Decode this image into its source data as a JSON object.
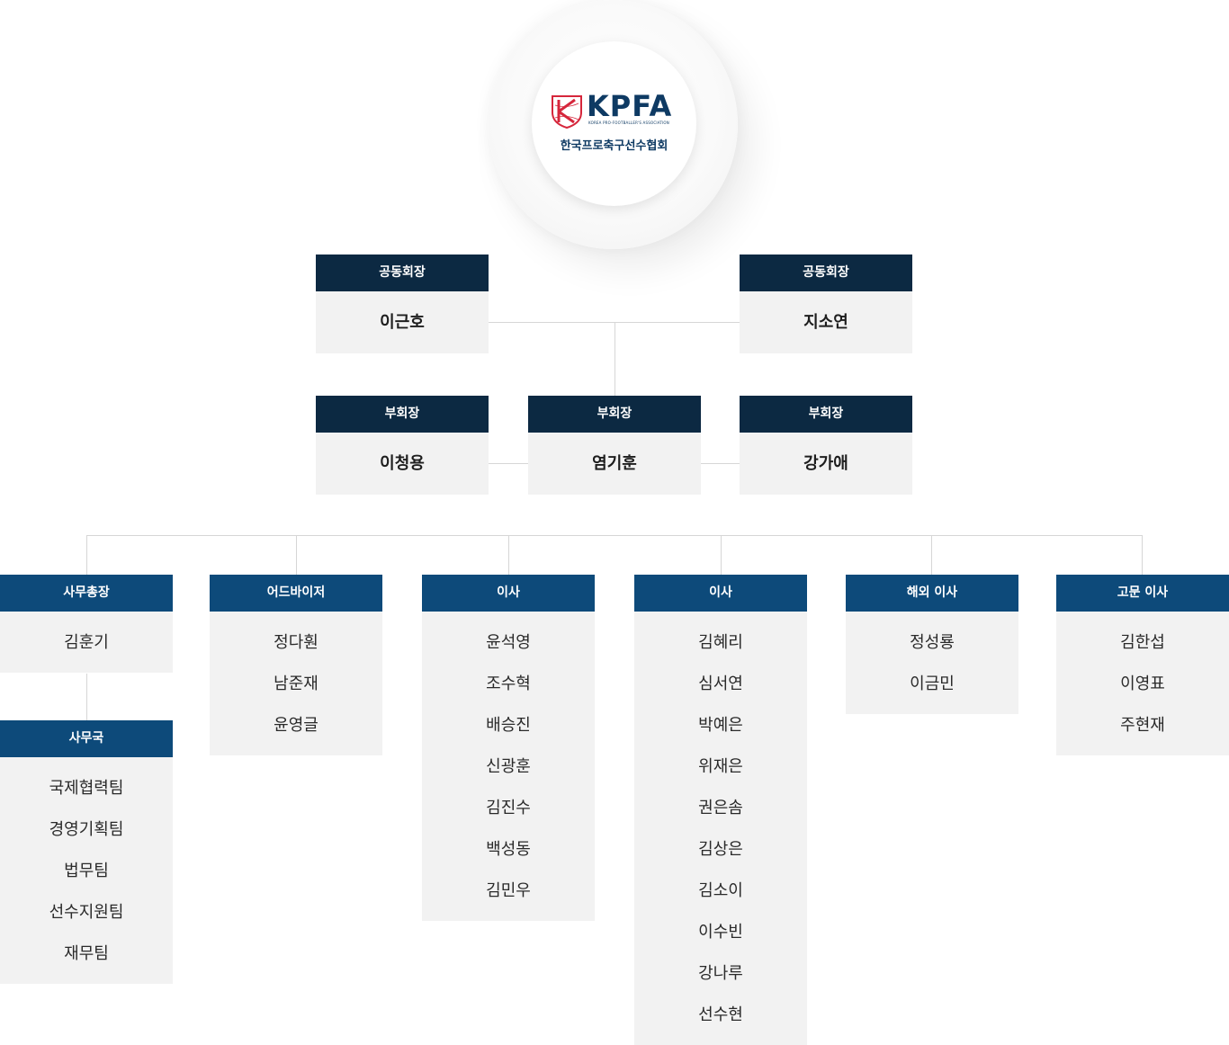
{
  "logo": {
    "wordmark": "KPFA",
    "tagline": "KOREA PRO-FOOTBALLER'S ASSOCIATION",
    "korean_name": "한국프로축구선수협회",
    "brand_color": "#0e3a63",
    "accent_color": "#d6263b"
  },
  "co_presidents": [
    {
      "title": "공동회장",
      "name": "이근호"
    },
    {
      "title": "공동회장",
      "name": "지소연"
    }
  ],
  "vice_presidents": [
    {
      "title": "부회장",
      "name": "이청용"
    },
    {
      "title": "부회장",
      "name": "염기훈"
    },
    {
      "title": "부회장",
      "name": "강가애"
    }
  ],
  "departments": [
    {
      "title": "사무총장",
      "members": [
        "김훈기"
      ]
    },
    {
      "title": "어드바이저",
      "members": [
        "정다훤",
        "남준재",
        "윤영글"
      ]
    },
    {
      "title": "이사",
      "members": [
        "윤석영",
        "조수혁",
        "배승진",
        "신광훈",
        "김진수",
        "백성동",
        "김민우"
      ]
    },
    {
      "title": "이사",
      "members": [
        "김혜리",
        "심서연",
        "박예은",
        "위재은",
        "권은솜",
        "김상은",
        "김소이",
        "이수빈",
        "강나루",
        "선수현"
      ]
    },
    {
      "title": "해외 이사",
      "members": [
        "정성룡",
        "이금민"
      ]
    },
    {
      "title": "고문 이사",
      "members": [
        "김한섭",
        "이영표",
        "주현재"
      ]
    }
  ],
  "secretariat": {
    "title": "사무국",
    "teams": [
      "국제협력팀",
      "경영기획팀",
      "법무팀",
      "선수지원팀",
      "재무팀"
    ]
  },
  "colors": {
    "header_dark": "#0c2942",
    "header_blue": "#0d4a7a",
    "box_bg": "#f2f2f2",
    "connector": "#d6d6d6"
  }
}
